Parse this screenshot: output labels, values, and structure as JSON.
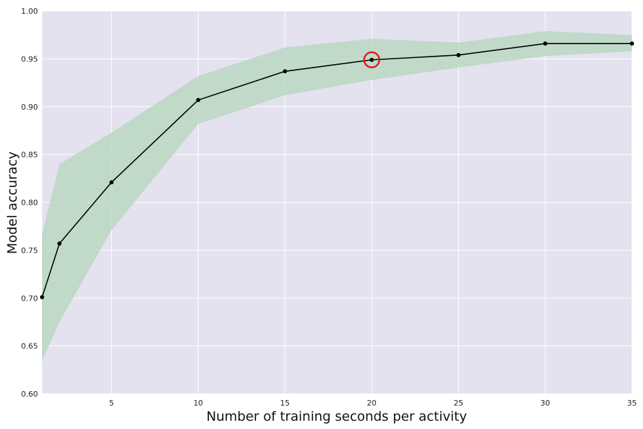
{
  "chart_data": {
    "type": "line",
    "title": "",
    "xlabel": "Number of training seconds per activity",
    "ylabel": "Model accuracy",
    "xlim": [
      1,
      35
    ],
    "ylim": [
      0.6,
      1.0
    ],
    "x_ticks": [
      5,
      10,
      15,
      20,
      25,
      30,
      35
    ],
    "y_ticks": [
      0.6,
      0.65,
      0.7,
      0.75,
      0.8,
      0.85,
      0.9,
      0.95,
      1.0
    ],
    "x_tick_labels": [
      "5",
      "10",
      "15",
      "20",
      "25",
      "30",
      "35"
    ],
    "y_tick_labels": [
      "0.60",
      "0.65",
      "0.70",
      "0.75",
      "0.80",
      "0.85",
      "0.90",
      "0.95",
      "1.00"
    ],
    "grid": true,
    "legend": "none",
    "series": [
      {
        "x": [
          1,
          2,
          5,
          10,
          15,
          20,
          25,
          30,
          35
        ],
        "y": [
          0.701,
          0.757,
          0.821,
          0.907,
          0.937,
          0.949,
          0.954,
          0.966,
          0.966
        ],
        "lower": [
          0.634,
          0.675,
          0.771,
          0.882,
          0.912,
          0.928,
          0.941,
          0.953,
          0.958
        ],
        "upper": [
          0.767,
          0.84,
          0.873,
          0.932,
          0.962,
          0.971,
          0.967,
          0.979,
          0.975
        ],
        "color": "#000000",
        "band_color": "#b4d6bc"
      }
    ],
    "highlight": {
      "x": 20,
      "y": 0.949,
      "color": "#e8161b"
    },
    "colors": {
      "plot_background": "#e4e2ef",
      "grid": "#ffffff"
    }
  }
}
